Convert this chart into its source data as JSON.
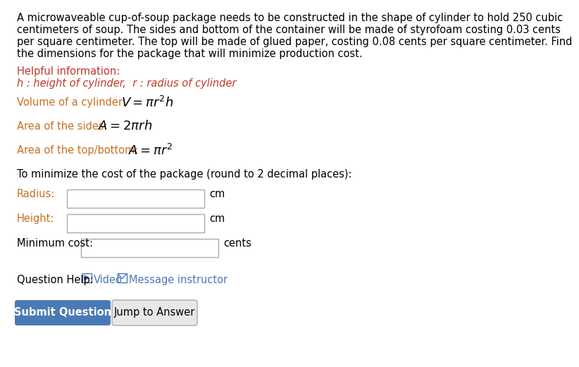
{
  "bg_color": "#ffffff",
  "black": "#000000",
  "red": "#c0392b",
  "blue": "#4a7ab5",
  "orange": "#c87020",
  "para_lines": [
    "A microwaveable cup-of-soup package needs to be constructed in the shape of cylinder to hold 250 cubic",
    "centimeters of soup. The sides and bottom of the container will be made of styrofoam costing 0.03 cents",
    "per square centimeter. The top will be made of glued paper, costing 0.08 cents per square centimeter. Find",
    "the dimensions for the package that will minimize production cost."
  ],
  "helpful_label": "Helpful information:",
  "helpful_vars": "h : height of cylinder,  r : radius of cylinder",
  "vol_prefix": "Volume of a cylinder: ",
  "sides_prefix": "Area of the sides: ",
  "topbot_prefix": "Area of the top/bottom: ",
  "minimize_text": "To minimize the cost of the package (round to 2 decimal places):",
  "radius_label": "Radius:",
  "height_label": "Height:",
  "mincost_label": "Minimum cost:",
  "cm_label": "cm",
  "cents_label": "cents",
  "question_help": "Question Help:",
  "video_label": "Video",
  "message_label": "Message instructor",
  "submit_label": "Submit Question",
  "jump_label": "Jump to Answer",
  "submit_bg": "#4a7ab5",
  "box_border": "#aaaaaa",
  "jump_bg": "#e8e8e8",
  "jump_border": "#aaaaaa",
  "fs_body": 10.5,
  "fs_math": 13.0,
  "fs_helpful": 10.5,
  "fs_button": 10.5
}
